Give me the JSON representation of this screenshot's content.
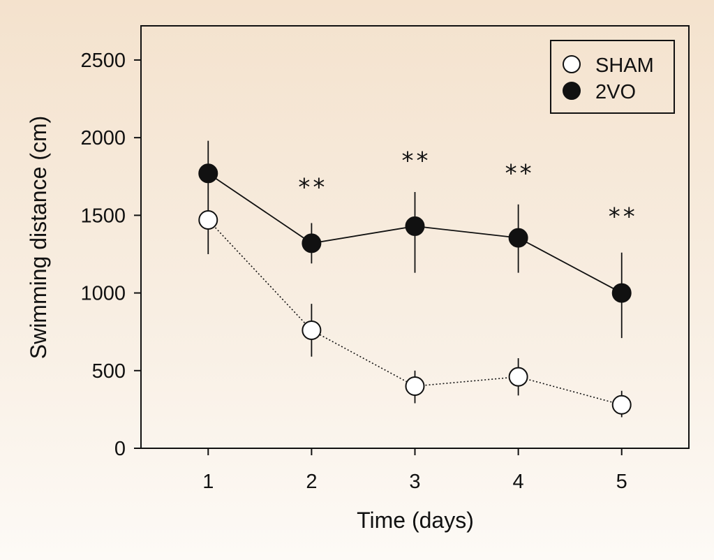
{
  "chart_data": {
    "type": "line",
    "xlabel": "Time (days)",
    "ylabel": "Swimming distance (cm)",
    "x": [
      1,
      2,
      3,
      4,
      5
    ],
    "xlim": [
      0.35,
      5.65
    ],
    "ylim": [
      0,
      2720
    ],
    "yticks": [
      0,
      500,
      1000,
      1500,
      2000,
      2500
    ],
    "xticks": [
      1,
      2,
      3,
      4,
      5
    ],
    "grid": false,
    "legend_position": "top-right",
    "series": [
      {
        "name": "SHAM",
        "marker": "open-circle",
        "line_style": "dotted",
        "values": [
          1470,
          760,
          400,
          460,
          280
        ],
        "error": [
          [
            1250,
            1500
          ],
          [
            590,
            930
          ],
          [
            290,
            500
          ],
          [
            340,
            580
          ],
          [
            200,
            370
          ]
        ]
      },
      {
        "name": "2VO",
        "marker": "filled-circle",
        "line_style": "solid",
        "values": [
          1770,
          1320,
          1430,
          1355,
          1000
        ],
        "error": [
          [
            1500,
            1980
          ],
          [
            1190,
            1450
          ],
          [
            1130,
            1650
          ],
          [
            1130,
            1570
          ],
          [
            710,
            1260
          ]
        ]
      }
    ],
    "annotations": [
      {
        "x": 2,
        "y": 1630,
        "text": "**"
      },
      {
        "x": 3,
        "y": 1800,
        "text": "**"
      },
      {
        "x": 4,
        "y": 1720,
        "text": "**"
      },
      {
        "x": 5,
        "y": 1440,
        "text": "**"
      }
    ],
    "colors": {
      "line": "#111111",
      "open_fill": "#ffffff",
      "filled_fill": "#111111"
    }
  }
}
